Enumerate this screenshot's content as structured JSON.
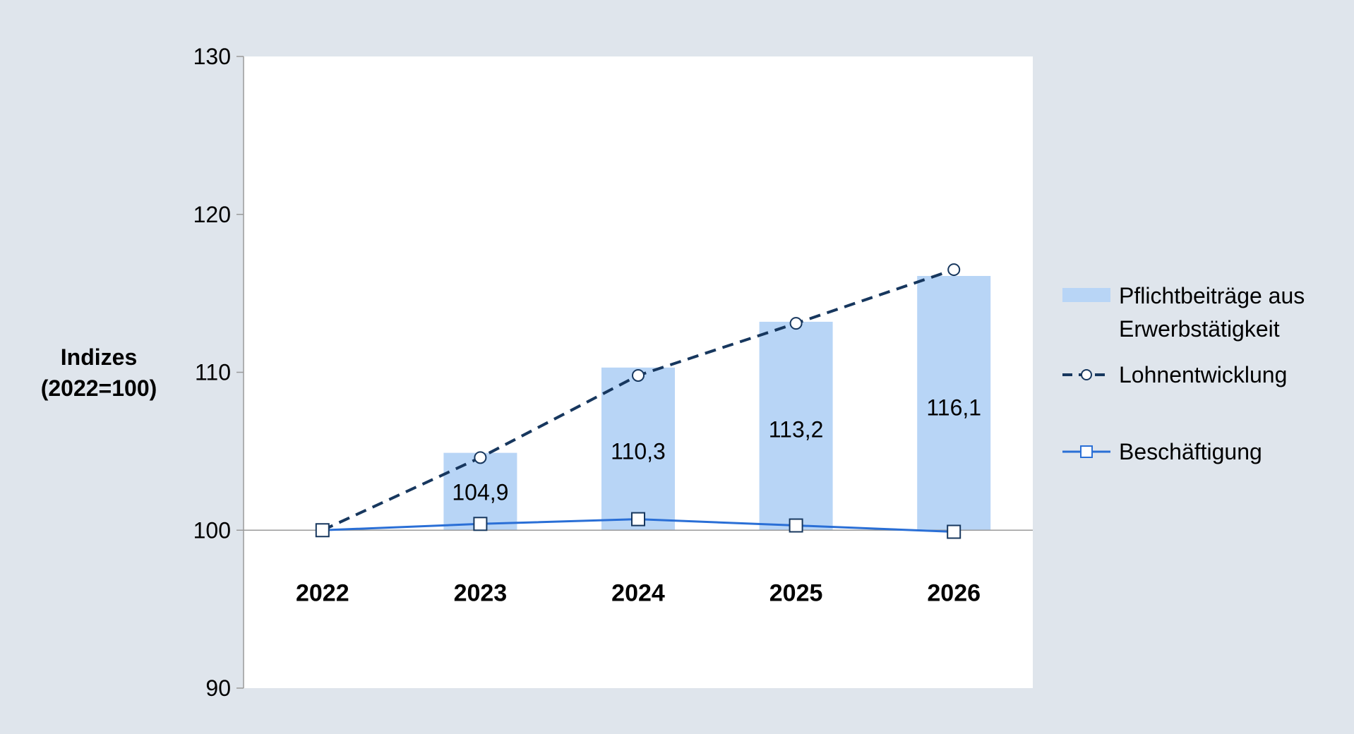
{
  "chart_data": {
    "type": "bar",
    "categories": [
      "2022",
      "2023",
      "2024",
      "2025",
      "2026"
    ],
    "ylabel": [
      "Indizes",
      "(2022=100)"
    ],
    "ylim": [
      90,
      130
    ],
    "yticks": [
      "90",
      "100",
      "110",
      "120",
      "130"
    ],
    "baseline": 100,
    "grid": false,
    "legend_position": "right",
    "series": [
      {
        "name": [
          "Pflichtbeiträge aus",
          "Erwerbstätigkeit"
        ],
        "type": "bar",
        "values": [
          100,
          104.9,
          110.3,
          113.2,
          116.1
        ],
        "labels": [
          "",
          "104,9",
          "110,3",
          "113,2",
          "116,1"
        ],
        "color": "#b8d5f6"
      },
      {
        "name": "Lohnentwicklung",
        "type": "line",
        "style": "dashed",
        "marker": "circle",
        "values": [
          100,
          104.6,
          109.8,
          113.1,
          116.5
        ],
        "color": "#17375e"
      },
      {
        "name": "Beschäftigung",
        "type": "line",
        "style": "solid",
        "marker": "square",
        "values": [
          100,
          100.4,
          100.7,
          100.3,
          99.9
        ],
        "color": "#2a6fd6"
      }
    ]
  },
  "colors": {
    "outer_background": "#dfe5ec",
    "plot_background": "#ffffff",
    "axis": "#9a9a9a",
    "text": "#000000"
  }
}
